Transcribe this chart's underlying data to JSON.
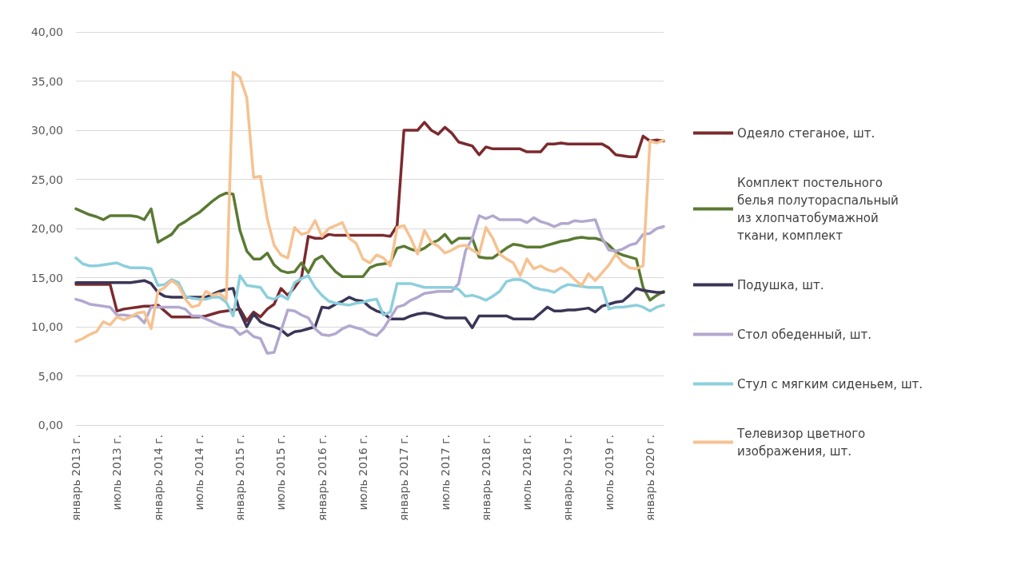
{
  "chart_data": {
    "type": "line",
    "categories": [
      "январь 2013 г.",
      null,
      null,
      null,
      null,
      null,
      "июль 2013 г.",
      null,
      null,
      null,
      null,
      null,
      "январь 2014 г.",
      null,
      null,
      null,
      null,
      null,
      "июль 2014 г.",
      null,
      null,
      null,
      null,
      null,
      "январь 2015 г.",
      null,
      null,
      null,
      null,
      null,
      "июль 2015 г.",
      null,
      null,
      null,
      null,
      null,
      "январь 2016 г.",
      null,
      null,
      null,
      null,
      null,
      "июль 2016 г.",
      null,
      null,
      null,
      null,
      null,
      "январь 2017 г.",
      null,
      null,
      null,
      null,
      null,
      "июль 2017 г.",
      null,
      null,
      null,
      null,
      null,
      "январь 2018 г.",
      null,
      null,
      null,
      null,
      null,
      "июль 2018 г.",
      null,
      null,
      null,
      null,
      null,
      "январь 2019 г.",
      null,
      null,
      null,
      null,
      null,
      "июль 2019 г.",
      null,
      null,
      null,
      null,
      null,
      "январь 2020 г.",
      null,
      null
    ],
    "ylim": [
      0,
      40
    ],
    "yticks": [
      {
        "value": 0,
        "label": "0,00"
      },
      {
        "value": 5,
        "label": "5,00"
      },
      {
        "value": 10,
        "label": "10,00"
      },
      {
        "value": 15,
        "label": "15,00"
      },
      {
        "value": 20,
        "label": "20,00"
      },
      {
        "value": 25,
        "label": "25,00"
      },
      {
        "value": 30,
        "label": "30,00"
      },
      {
        "value": 35,
        "label": "35,00"
      },
      {
        "value": 40,
        "label": "40,00"
      }
    ],
    "grid": "y",
    "legend": "right",
    "marker": "none",
    "line_style": "solid",
    "series": [
      {
        "name": "Одеяло стеганое, шт.",
        "color": "#7b2a2e",
        "values": [
          14.3,
          14.3,
          14.3,
          14.3,
          14.3,
          14.3,
          11.6,
          11.8,
          11.9,
          12.0,
          12.1,
          12.1,
          12.2,
          11.6,
          11.0,
          11.0,
          11.0,
          11.0,
          11.0,
          11.1,
          11.3,
          11.5,
          11.6,
          11.7,
          11.8,
          10.6,
          11.5,
          11.0,
          11.8,
          12.3,
          13.9,
          13.2,
          14.0,
          15.0,
          19.2,
          19.0,
          19.0,
          19.4,
          19.3,
          19.3,
          19.3,
          19.3,
          19.3,
          19.3,
          19.3,
          19.3,
          19.2,
          20.3,
          30.0,
          30.0,
          30.0,
          30.8,
          30.0,
          29.6,
          30.3,
          29.7,
          28.8,
          28.6,
          28.4,
          27.5,
          28.3,
          28.1,
          28.1,
          28.1,
          28.1,
          28.1,
          27.8,
          27.8,
          27.8,
          28.6,
          28.6,
          28.7,
          28.6,
          28.6,
          28.6,
          28.6,
          28.6,
          28.6,
          28.2,
          27.5,
          27.4,
          27.3,
          27.3,
          29.4,
          28.9,
          29.0,
          28.9
        ]
      },
      {
        "name": "Комплект постельного белья полутораспальный из хлопчатобумажной ткани, комплект",
        "color": "#5a7a32",
        "values": [
          22.0,
          21.7,
          21.4,
          21.2,
          20.9,
          21.3,
          21.3,
          21.3,
          21.3,
          21.2,
          20.9,
          22.0,
          18.6,
          19.0,
          19.4,
          20.3,
          20.7,
          21.2,
          21.6,
          22.2,
          22.8,
          23.3,
          23.6,
          23.5,
          19.8,
          17.7,
          16.9,
          16.9,
          17.5,
          16.3,
          15.7,
          15.5,
          15.6,
          16.5,
          15.5,
          16.8,
          17.2,
          16.4,
          15.6,
          15.1,
          15.1,
          15.1,
          15.1,
          16.0,
          16.3,
          16.4,
          16.5,
          18.0,
          18.2,
          17.9,
          17.7,
          18.0,
          18.5,
          18.8,
          19.4,
          18.5,
          19.0,
          19.0,
          19.0,
          17.1,
          17.0,
          17.0,
          17.5,
          18.0,
          18.4,
          18.3,
          18.1,
          18.1,
          18.1,
          18.3,
          18.5,
          18.7,
          18.8,
          19.0,
          19.1,
          19.0,
          19.0,
          18.8,
          18.3,
          17.6,
          17.3,
          17.1,
          16.9,
          14.0,
          12.7,
          13.2,
          13.6
        ]
      },
      {
        "name": "Подушка, шт.",
        "color": "#3b3556",
        "values": [
          14.5,
          14.5,
          14.5,
          14.5,
          14.5,
          14.5,
          14.5,
          14.5,
          14.5,
          14.6,
          14.7,
          14.4,
          13.5,
          13.1,
          13.0,
          13.0,
          13.0,
          13.0,
          13.0,
          13.0,
          13.3,
          13.6,
          13.8,
          13.9,
          11.5,
          10.0,
          11.3,
          10.5,
          10.2,
          10.0,
          9.7,
          9.1,
          9.5,
          9.6,
          9.8,
          10.0,
          12.0,
          11.9,
          12.3,
          12.6,
          13.0,
          12.7,
          12.6,
          12.0,
          11.6,
          11.4,
          10.8,
          10.8,
          10.8,
          11.1,
          11.3,
          11.4,
          11.3,
          11.1,
          10.9,
          10.9,
          10.9,
          10.9,
          9.9,
          11.1,
          11.1,
          11.1,
          11.1,
          11.1,
          10.8,
          10.8,
          10.8,
          10.8,
          11.4,
          12.0,
          11.6,
          11.6,
          11.7,
          11.7,
          11.8,
          11.9,
          11.5,
          12.1,
          12.3,
          12.5,
          12.6,
          13.2,
          13.9,
          13.7,
          13.6,
          13.5,
          13.5
        ]
      },
      {
        "name": "Стол обеденный, шт.",
        "color": "#b3a8cf",
        "values": [
          12.8,
          12.6,
          12.3,
          12.2,
          12.1,
          12.0,
          11.2,
          11.2,
          11.1,
          11.1,
          10.4,
          12.0,
          12.0,
          12.0,
          12.0,
          12.0,
          11.8,
          11.1,
          11.1,
          10.8,
          10.5,
          10.2,
          10.0,
          9.9,
          9.2,
          9.6,
          9.0,
          8.8,
          7.3,
          7.4,
          9.6,
          11.7,
          11.6,
          11.2,
          10.9,
          9.8,
          9.2,
          9.1,
          9.3,
          9.8,
          10.1,
          9.9,
          9.7,
          9.3,
          9.1,
          9.8,
          10.9,
          12.0,
          12.2,
          12.7,
          13.0,
          13.4,
          13.5,
          13.6,
          13.6,
          13.6,
          14.4,
          17.7,
          19.0,
          21.3,
          21.0,
          21.3,
          20.9,
          20.9,
          20.9,
          20.9,
          20.6,
          21.1,
          20.7,
          20.5,
          20.2,
          20.5,
          20.5,
          20.8,
          20.7,
          20.8,
          20.9,
          19.0,
          17.8,
          17.7,
          17.9,
          18.3,
          18.5,
          19.4,
          19.5,
          20.0,
          20.2
        ]
      },
      {
        "name": "Стул с мягким сиденьем, шт.",
        "color": "#8ccfdc",
        "values": [
          17.0,
          16.4,
          16.2,
          16.2,
          16.3,
          16.4,
          16.5,
          16.2,
          16.0,
          16.0,
          16.0,
          15.9,
          14.2,
          14.3,
          14.8,
          14.5,
          13.1,
          12.9,
          12.8,
          12.8,
          13.0,
          13.0,
          12.5,
          11.1,
          15.2,
          14.2,
          14.1,
          14.0,
          13.0,
          12.8,
          13.2,
          12.8,
          14.5,
          14.9,
          15.2,
          14.0,
          13.2,
          12.6,
          12.4,
          12.3,
          12.2,
          12.4,
          12.5,
          12.7,
          12.8,
          11.2,
          11.5,
          14.4,
          14.4,
          14.4,
          14.2,
          14.0,
          14.0,
          14.0,
          14.0,
          14.0,
          13.8,
          13.1,
          13.2,
          13.0,
          12.7,
          13.1,
          13.6,
          14.6,
          14.8,
          14.8,
          14.5,
          14.0,
          13.8,
          13.7,
          13.5,
          14.0,
          14.3,
          14.2,
          14.1,
          14.0,
          14.0,
          14.0,
          11.8,
          12.0,
          12.0,
          12.1,
          12.2,
          12.0,
          11.6,
          12.0,
          12.2
        ]
      },
      {
        "name": "Телевизор цветного изображения, шт.",
        "color": "#f6c291",
        "values": [
          8.5,
          8.8,
          9.2,
          9.5,
          10.5,
          10.2,
          11.0,
          10.7,
          11.0,
          11.4,
          11.5,
          9.8,
          13.6,
          14.0,
          14.7,
          14.2,
          12.8,
          12.0,
          12.2,
          13.6,
          13.2,
          13.4,
          12.8,
          35.9,
          35.4,
          33.3,
          25.2,
          25.3,
          21.0,
          18.3,
          17.3,
          17.0,
          20.1,
          19.4,
          19.6,
          20.8,
          19.2,
          20.0,
          20.3,
          20.6,
          19.0,
          18.5,
          16.9,
          16.5,
          17.3,
          17.0,
          16.2,
          20.1,
          20.3,
          19.0,
          17.4,
          19.8,
          18.6,
          18.2,
          17.5,
          17.8,
          18.2,
          18.3,
          17.8,
          17.4,
          20.1,
          19.0,
          17.4,
          16.9,
          16.5,
          15.2,
          16.9,
          15.9,
          16.2,
          15.8,
          15.6,
          16.0,
          15.5,
          14.8,
          14.2,
          15.4,
          14.7,
          15.5,
          16.3,
          17.4,
          16.5,
          16.0,
          15.9,
          16.2,
          28.9,
          28.7,
          29.0
        ]
      }
    ]
  }
}
